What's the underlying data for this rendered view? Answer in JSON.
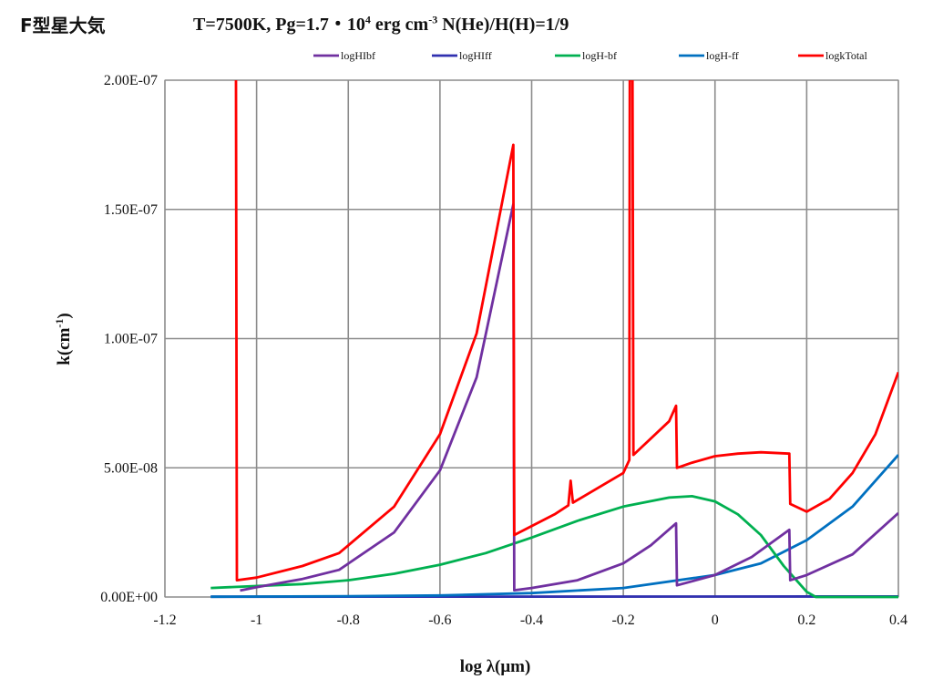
{
  "page": {
    "corner_label": "F型星大気",
    "title_parts": [
      "T=7500K, Pg=1.7・10",
      "4",
      " erg cm",
      "-3",
      " N(He)/H(H)=1/9"
    ]
  },
  "chart_data": {
    "type": "line",
    "title": "T=7500K, Pg=1.7・10^4 erg cm^-3 N(He)/H(H)=1/9",
    "xlabel": "log λ(μm)",
    "ylabel_parts": [
      "k(cm",
      "-1",
      ")"
    ],
    "xlim": [
      -1.2,
      0.4
    ],
    "ylim": [
      0,
      2e-07
    ],
    "x_ticks": [
      -1.2,
      -1,
      -0.8,
      -0.6,
      -0.4,
      -0.2,
      0,
      0.2,
      0.4
    ],
    "x_tick_labels": [
      "-1.2",
      "-1",
      "-0.8",
      "-0.6",
      "-0.4",
      "-0.2",
      "0",
      "0.2",
      "0.4"
    ],
    "y_ticks": [
      0,
      5e-08,
      1e-07,
      1.5e-07,
      2e-07
    ],
    "y_tick_labels": [
      "0.00E+00",
      "5.00E-08",
      "1.00E-07",
      "1.50E-07",
      "2.00E-07"
    ],
    "grid": true,
    "legend_position": "top",
    "series": [
      {
        "name": "logHIbf",
        "color": "#7030a0",
        "points": [
          [
            -1.036,
            2.5e-09
          ],
          [
            -1.0,
            3.8e-09
          ],
          [
            -0.9,
            7e-09
          ],
          [
            -0.82,
            1.05e-08
          ],
          [
            -0.7,
            2.5e-08
          ],
          [
            -0.6,
            4.9e-08
          ],
          [
            -0.52,
            8.5e-08
          ],
          [
            -0.44,
            1.52e-07
          ],
          [
            -0.438,
            2.6e-09
          ],
          [
            -0.4,
            3.5e-09
          ],
          [
            -0.3,
            6.5e-09
          ],
          [
            -0.2,
            1.3e-08
          ],
          [
            -0.14,
            2e-08
          ],
          [
            -0.085,
            2.85e-08
          ],
          [
            -0.083,
            4.5e-09
          ],
          [
            0.0,
            8.5e-09
          ],
          [
            0.08,
            1.55e-08
          ],
          [
            0.162,
            2.6e-08
          ],
          [
            0.164,
            6.5e-09
          ],
          [
            0.2,
            8.5e-09
          ],
          [
            0.3,
            1.65e-08
          ],
          [
            0.4,
            3.25e-08
          ]
        ]
      },
      {
        "name": "logHIff",
        "color": "#3030b0",
        "points": [
          [
            -1.1,
            1e-10
          ],
          [
            0.4,
            2e-10
          ]
        ]
      },
      {
        "name": "logH-bf",
        "color": "#00b050",
        "points": [
          [
            -1.1,
            3.5e-09
          ],
          [
            -0.9,
            5e-09
          ],
          [
            -0.8,
            6.5e-09
          ],
          [
            -0.7,
            9e-09
          ],
          [
            -0.6,
            1.25e-08
          ],
          [
            -0.5,
            1.7e-08
          ],
          [
            -0.4,
            2.3e-08
          ],
          [
            -0.3,
            2.95e-08
          ],
          [
            -0.2,
            3.5e-08
          ],
          [
            -0.1,
            3.85e-08
          ],
          [
            -0.05,
            3.9e-08
          ],
          [
            0.0,
            3.7e-08
          ],
          [
            0.05,
            3.2e-08
          ],
          [
            0.1,
            2.4e-08
          ],
          [
            0.15,
            1.2e-08
          ],
          [
            0.2,
            2e-09
          ],
          [
            0.22,
            0
          ],
          [
            0.4,
            0
          ]
        ]
      },
      {
        "name": "logH-ff",
        "color": "#0070c0",
        "points": [
          [
            -1.1,
            1e-10
          ],
          [
            -0.8,
            3e-10
          ],
          [
            -0.6,
            6e-10
          ],
          [
            -0.4,
            1.5e-09
          ],
          [
            -0.2,
            3.5e-09
          ],
          [
            0.0,
            8.5e-09
          ],
          [
            0.1,
            1.3e-08
          ],
          [
            0.2,
            2.2e-08
          ],
          [
            0.3,
            3.5e-08
          ],
          [
            0.4,
            5.5e-08
          ]
        ]
      },
      {
        "name": "logkTotal",
        "color": "#ff0000",
        "points": [
          [
            -1.045,
            2e-07
          ],
          [
            -1.043,
            6.5e-09
          ],
          [
            -1.0,
            7.5e-09
          ],
          [
            -0.9,
            1.2e-08
          ],
          [
            -0.82,
            1.7e-08
          ],
          [
            -0.7,
            3.5e-08
          ],
          [
            -0.6,
            6.3e-08
          ],
          [
            -0.52,
            1.02e-07
          ],
          [
            -0.44,
            1.75e-07
          ],
          [
            -0.438,
            2.4e-08
          ],
          [
            -0.35,
            3.2e-08
          ],
          [
            -0.32,
            3.55e-08
          ],
          [
            -0.315,
            4.5e-08
          ],
          [
            -0.31,
            3.65e-08
          ],
          [
            -0.2,
            4.8e-08
          ],
          [
            -0.187,
            5.3e-08
          ],
          [
            -0.186,
            2e-07
          ],
          [
            -0.18,
            2e-07
          ],
          [
            -0.178,
            5.5e-08
          ],
          [
            -0.1,
            6.8e-08
          ],
          [
            -0.085,
            7.4e-08
          ],
          [
            -0.083,
            5e-08
          ],
          [
            -0.05,
            5.2e-08
          ],
          [
            0.0,
            5.45e-08
          ],
          [
            0.05,
            5.55e-08
          ],
          [
            0.1,
            5.6e-08
          ],
          [
            0.162,
            5.55e-08
          ],
          [
            0.164,
            3.6e-08
          ],
          [
            0.2,
            3.3e-08
          ],
          [
            0.25,
            3.8e-08
          ],
          [
            0.3,
            4.8e-08
          ],
          [
            0.35,
            6.3e-08
          ],
          [
            0.4,
            8.7e-08
          ]
        ]
      }
    ]
  }
}
